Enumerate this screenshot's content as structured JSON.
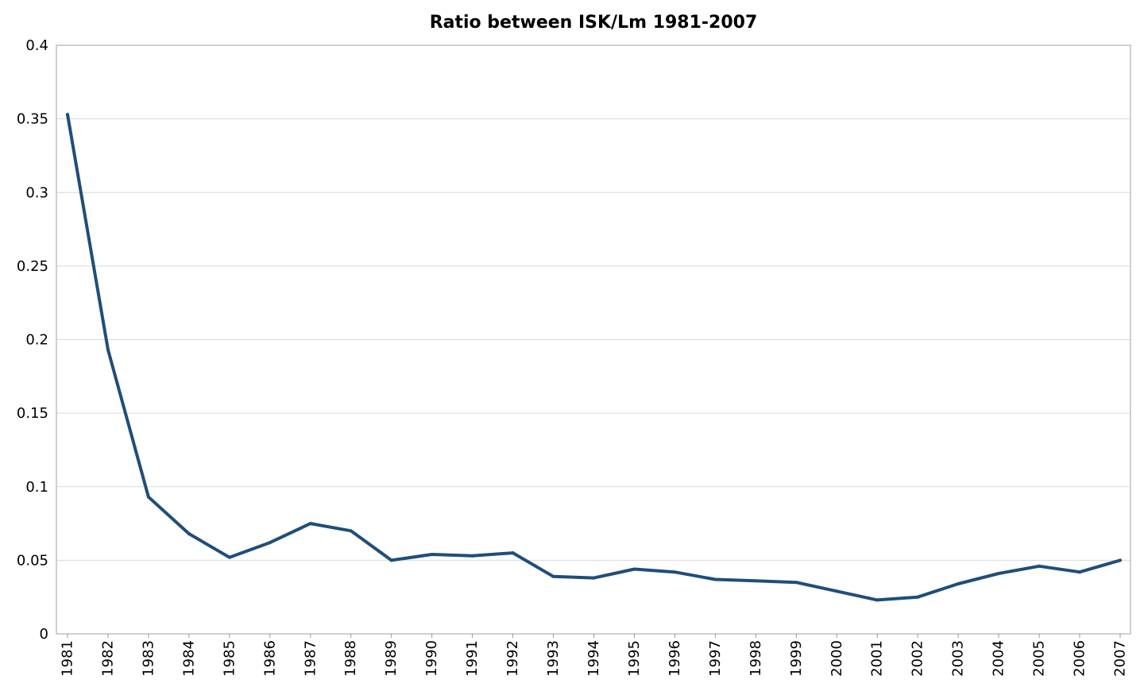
{
  "chart_data": {
    "type": "line",
    "title": "Ratio between ISK/Lm 1981-2007",
    "xlabel": "",
    "ylabel": "",
    "ylim": [
      0,
      0.4
    ],
    "yticks": [
      "0",
      "0.05",
      "0.1",
      "0.15",
      "0.2",
      "0.25",
      "0.3",
      "0.35",
      "0.4"
    ],
    "grid": "horizontal",
    "legend": "none",
    "categories": [
      "1981",
      "1982",
      "1983",
      "1984",
      "1985",
      "1986",
      "1987",
      "1988",
      "1989",
      "1990",
      "1991",
      "1992",
      "1993",
      "1994",
      "1995",
      "1996",
      "1997",
      "1998",
      "1999",
      "2000",
      "2001",
      "2002",
      "2003",
      "2004",
      "2005",
      "2006",
      "2007"
    ],
    "series": [
      {
        "color": "#1f4e79",
        "values": [
          0.353,
          0.193,
          0.093,
          0.068,
          0.052,
          0.062,
          0.075,
          0.07,
          0.05,
          0.054,
          0.053,
          0.055,
          0.039,
          0.038,
          0.044,
          0.042,
          0.037,
          0.036,
          0.035,
          0.029,
          0.023,
          0.025,
          0.034,
          0.041,
          0.046,
          0.042,
          0.05
        ]
      }
    ]
  }
}
